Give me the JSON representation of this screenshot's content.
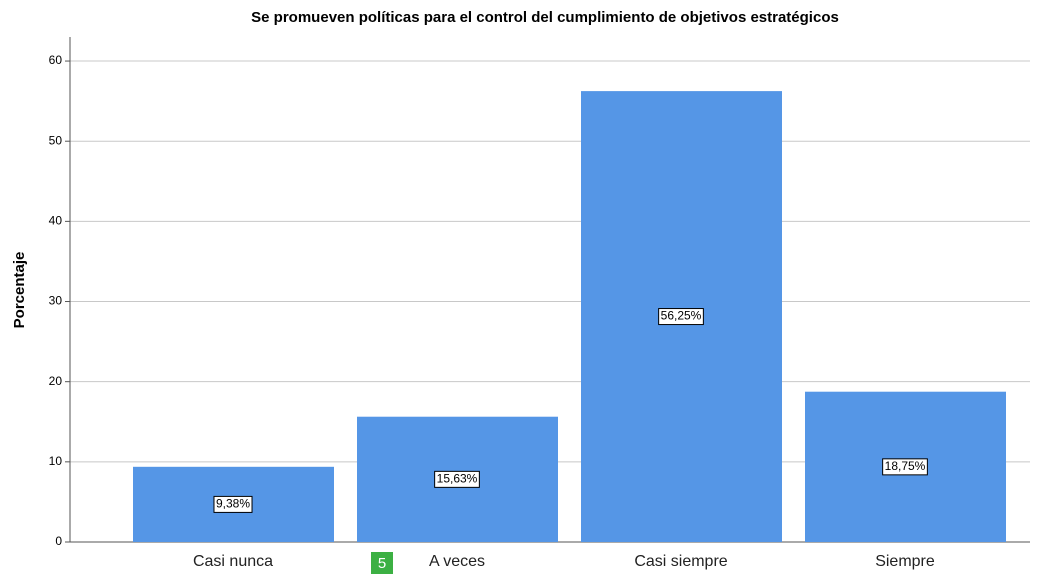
{
  "chart_data": {
    "type": "bar",
    "title": "Se promueven políticas para el control del cumplimiento de objetivos estratégicos",
    "y_label": "Porcentaje",
    "categories": [
      "Casi nunca",
      "A veces",
      "Casi siempre",
      "Siempre"
    ],
    "values": [
      9.38,
      15.63,
      56.25,
      18.75
    ],
    "value_labels": [
      "9,38%",
      "15,63%",
      "56,25%",
      "18,75%"
    ],
    "color": "#5596e6",
    "ylim": [
      0,
      63
    ],
    "yticks": [
      0,
      10,
      20,
      30,
      40,
      50,
      60
    ],
    "grid": true,
    "badge": "5"
  }
}
